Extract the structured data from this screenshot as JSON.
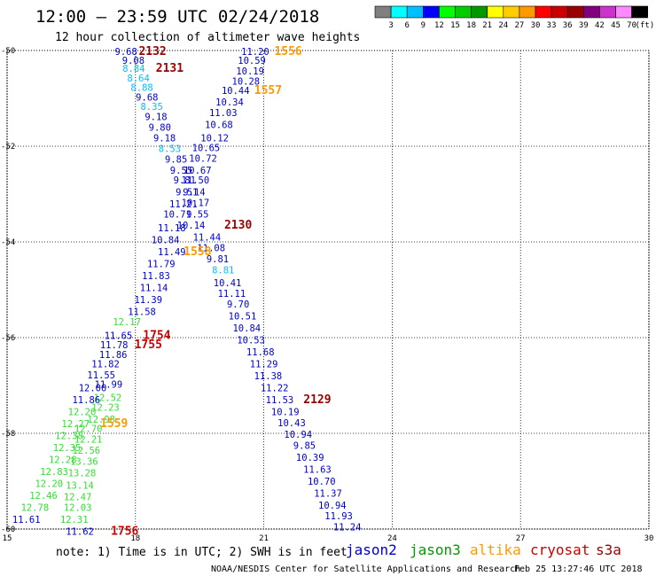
{
  "title": "12:00 – 23:59 UTC 02/24/2018",
  "subtitle": "12 hour collection of altimeter wave heights",
  "colorbar": {
    "labels": [
      "3",
      "6",
      "9",
      "12",
      "15",
      "18",
      "21",
      "24",
      "27",
      "30",
      "33",
      "36",
      "39",
      "42",
      "45",
      "70",
      "(ft)"
    ],
    "colors": [
      "#7f7f7f",
      "#00ffff",
      "#00bfff",
      "#0000ff",
      "#00ff00",
      "#00cc00",
      "#009900",
      "#ffff00",
      "#ffcc00",
      "#ff9900",
      "#ff0000",
      "#cc0000",
      "#990000",
      "#800080",
      "#cc33cc",
      "#ff88ff",
      "#000000"
    ]
  },
  "note": "note:  1) Time is in UTC;  2) SWH is in feet",
  "legend": [
    {
      "name": "jason2",
      "color": "#0000cc"
    },
    {
      "name": "jason3",
      "color": "#009900"
    },
    {
      "name": "altika",
      "color": "#ff9900"
    },
    {
      "name": "cryosat",
      "color": "#cc0000"
    },
    {
      "name": "s3a",
      "color": "#990000"
    }
  ],
  "credit": "NOAA/NESDIS Center for Satellite Applications and Research",
  "timestamp": "Feb 25 13:27:46 UTC 2018",
  "chart_data": {
    "type": "scatter",
    "title": "12:00 – 23:59 UTC 02/24/2018",
    "subtitle": "12 hour collection of altimeter wave heights",
    "xlim": [
      15,
      30
    ],
    "ylim": [
      -60,
      -50
    ],
    "x_ticks": [
      "15",
      "18",
      "21",
      "24",
      "27",
      "30"
    ],
    "y_ticks": [
      "-50",
      "-52",
      "-54",
      "-56",
      "-58",
      "-60"
    ],
    "grid": true,
    "color_scale_units": "ft",
    "points": [
      {
        "t": "9.68",
        "x": 17.78,
        "y": -50.02,
        "c": "#0000cc"
      },
      {
        "t": "2132",
        "x": 18.4,
        "y": -50.02,
        "c": "#990000",
        "time": true
      },
      {
        "t": "11.20",
        "x": 20.8,
        "y": -50.02,
        "c": "#0000cc"
      },
      {
        "t": "1556",
        "x": 21.57,
        "y": -50.02,
        "c": "#ff9900",
        "time": true
      },
      {
        "t": "9.08",
        "x": 17.95,
        "y": -50.2,
        "c": "#0000cc"
      },
      {
        "t": "10.59",
        "x": 20.72,
        "y": -50.2,
        "c": "#0000cc"
      },
      {
        "t": "8.84",
        "x": 17.96,
        "y": -50.37,
        "c": "#00bfff"
      },
      {
        "t": "2131",
        "x": 18.8,
        "y": -50.37,
        "c": "#990000",
        "time": true
      },
      {
        "t": "10.19",
        "x": 20.68,
        "y": -50.43,
        "c": "#0000cc"
      },
      {
        "t": "8.64",
        "x": 18.07,
        "y": -50.57,
        "c": "#00bfff"
      },
      {
        "t": "10.28",
        "x": 20.58,
        "y": -50.64,
        "c": "#0000cc"
      },
      {
        "t": "8.88",
        "x": 18.15,
        "y": -50.77,
        "c": "#00bfff"
      },
      {
        "t": "10.44",
        "x": 20.34,
        "y": -50.83,
        "c": "#0000cc"
      },
      {
        "t": "1557",
        "x": 21.1,
        "y": -50.83,
        "c": "#ff9900",
        "time": true
      },
      {
        "t": "9.68",
        "x": 18.27,
        "y": -50.97,
        "c": "#0000cc"
      },
      {
        "t": "10.34",
        "x": 20.2,
        "y": -51.07,
        "c": "#0000cc"
      },
      {
        "t": "8.35",
        "x": 18.38,
        "y": -51.17,
        "c": "#00bfff"
      },
      {
        "t": "11.03",
        "x": 20.05,
        "y": -51.3,
        "c": "#0000cc"
      },
      {
        "t": "9.18",
        "x": 18.48,
        "y": -51.38,
        "c": "#0000cc"
      },
      {
        "t": "10.68",
        "x": 19.95,
        "y": -51.55,
        "c": "#0000cc"
      },
      {
        "t": "9.80",
        "x": 18.57,
        "y": -51.6,
        "c": "#0000cc"
      },
      {
        "t": "9.18",
        "x": 18.68,
        "y": -51.82,
        "c": "#0000cc"
      },
      {
        "t": "10.12",
        "x": 19.85,
        "y": -51.82,
        "c": "#0000cc"
      },
      {
        "t": "10.65",
        "x": 19.65,
        "y": -52.03,
        "c": "#0000cc"
      },
      {
        "t": "8.53",
        "x": 18.8,
        "y": -52.05,
        "c": "#00bfff"
      },
      {
        "t": "10.72",
        "x": 19.58,
        "y": -52.25,
        "c": "#0000cc"
      },
      {
        "t": "9.85",
        "x": 18.95,
        "y": -52.27,
        "c": "#0000cc"
      },
      {
        "t": "10.67",
        "x": 19.45,
        "y": -52.5,
        "c": "#0000cc"
      },
      {
        "t": "9.55",
        "x": 19.07,
        "y": -52.5,
        "c": "#0000cc"
      },
      {
        "t": "11.50",
        "x": 19.4,
        "y": -52.7,
        "c": "#0000cc"
      },
      {
        "t": "9.81",
        "x": 19.15,
        "y": -52.7,
        "c": "#0000cc"
      },
      {
        "t": "9.14",
        "x": 19.37,
        "y": -52.95,
        "c": "#0000cc"
      },
      {
        "t": "9.51",
        "x": 19.2,
        "y": -52.95,
        "c": "#0000cc"
      },
      {
        "t": "10.17",
        "x": 19.4,
        "y": -53.18,
        "c": "#0000cc"
      },
      {
        "t": "11.21",
        "x": 19.12,
        "y": -53.2,
        "c": "#0000cc"
      },
      {
        "t": "9.55",
        "x": 19.45,
        "y": -53.42,
        "c": "#0000cc"
      },
      {
        "t": "10.71",
        "x": 18.98,
        "y": -53.42,
        "c": "#0000cc"
      },
      {
        "t": "10.14",
        "x": 19.3,
        "y": -53.65,
        "c": "#0000cc"
      },
      {
        "t": "2130",
        "x": 20.4,
        "y": -53.65,
        "c": "#990000",
        "time": true
      },
      {
        "t": "11.18",
        "x": 18.85,
        "y": -53.7,
        "c": "#0000cc"
      },
      {
        "t": "11.44",
        "x": 19.67,
        "y": -53.9,
        "c": "#0000cc"
      },
      {
        "t": "10.84",
        "x": 18.7,
        "y": -53.95,
        "c": "#0000cc"
      },
      {
        "t": "11.08",
        "x": 19.77,
        "y": -54.12,
        "c": "#0000cc"
      },
      {
        "t": "1558",
        "x": 19.45,
        "y": -54.2,
        "c": "#ff9900",
        "time": true
      },
      {
        "t": "11.49",
        "x": 18.85,
        "y": -54.2,
        "c": "#0000cc"
      },
      {
        "t": "9.81",
        "x": 19.92,
        "y": -54.35,
        "c": "#0000cc"
      },
      {
        "t": "11.79",
        "x": 18.6,
        "y": -54.45,
        "c": "#0000cc"
      },
      {
        "t": "8.81",
        "x": 20.05,
        "y": -54.58,
        "c": "#00bfff"
      },
      {
        "t": "11.83",
        "x": 18.48,
        "y": -54.7,
        "c": "#0000cc"
      },
      {
        "t": "10.41",
        "x": 20.15,
        "y": -54.85,
        "c": "#0000cc"
      },
      {
        "t": "11.14",
        "x": 18.43,
        "y": -54.95,
        "c": "#0000cc"
      },
      {
        "t": "11.11",
        "x": 20.25,
        "y": -55.07,
        "c": "#0000cc"
      },
      {
        "t": "11.39",
        "x": 18.3,
        "y": -55.2,
        "c": "#0000cc"
      },
      {
        "t": "9.70",
        "x": 20.4,
        "y": -55.3,
        "c": "#0000cc"
      },
      {
        "t": "11.58",
        "x": 18.15,
        "y": -55.45,
        "c": "#0000cc"
      },
      {
        "t": "10.51",
        "x": 20.5,
        "y": -55.55,
        "c": "#0000cc"
      },
      {
        "t": "12.17",
        "x": 17.8,
        "y": -55.67,
        "c": "#33dd33"
      },
      {
        "t": "10.84",
        "x": 20.6,
        "y": -55.8,
        "c": "#0000cc"
      },
      {
        "t": "11.65",
        "x": 17.6,
        "y": -55.95,
        "c": "#0000cc"
      },
      {
        "t": "1754",
        "x": 18.5,
        "y": -55.95,
        "c": "#cc0000",
        "time": true
      },
      {
        "t": "10.53",
        "x": 20.7,
        "y": -56.05,
        "c": "#0000cc"
      },
      {
        "t": "11.78",
        "x": 17.5,
        "y": -56.15,
        "c": "#0000cc"
      },
      {
        "t": "1755",
        "x": 18.3,
        "y": -56.15,
        "c": "#cc0000",
        "time": true
      },
      {
        "t": "11.68",
        "x": 20.92,
        "y": -56.3,
        "c": "#0000cc"
      },
      {
        "t": "11.86",
        "x": 17.48,
        "y": -56.35,
        "c": "#0000cc"
      },
      {
        "t": "11.29",
        "x": 21.0,
        "y": -56.55,
        "c": "#0000cc"
      },
      {
        "t": "11.82",
        "x": 17.3,
        "y": -56.55,
        "c": "#0000cc"
      },
      {
        "t": "11.55",
        "x": 17.2,
        "y": -56.78,
        "c": "#0000cc"
      },
      {
        "t": "11.38",
        "x": 21.1,
        "y": -56.8,
        "c": "#0000cc"
      },
      {
        "t": "11.99",
        "x": 17.37,
        "y": -56.97,
        "c": "#0000cc"
      },
      {
        "t": "11.22",
        "x": 21.25,
        "y": -57.05,
        "c": "#0000cc"
      },
      {
        "t": "12.00",
        "x": 17.0,
        "y": -57.05,
        "c": "#0000cc"
      },
      {
        "t": "12.52",
        "x": 17.35,
        "y": -57.25,
        "c": "#33dd33"
      },
      {
        "t": "11.53",
        "x": 21.37,
        "y": -57.3,
        "c": "#0000cc"
      },
      {
        "t": "2129",
        "x": 22.25,
        "y": -57.3,
        "c": "#990000",
        "time": true
      },
      {
        "t": "11.86",
        "x": 16.85,
        "y": -57.3,
        "c": "#0000cc"
      },
      {
        "t": "12.23",
        "x": 17.3,
        "y": -57.45,
        "c": "#33dd33"
      },
      {
        "t": "10.19",
        "x": 21.5,
        "y": -57.55,
        "c": "#0000cc"
      },
      {
        "t": "12.20",
        "x": 16.75,
        "y": -57.55,
        "c": "#33dd33"
      },
      {
        "t": "12.98",
        "x": 17.2,
        "y": -57.7,
        "c": "#33dd33"
      },
      {
        "t": "10.43",
        "x": 21.65,
        "y": -57.78,
        "c": "#0000cc"
      },
      {
        "t": "12.27",
        "x": 16.6,
        "y": -57.8,
        "c": "#33dd33"
      },
      {
        "t": "1559",
        "x": 17.5,
        "y": -57.8,
        "c": "#ff9900",
        "time": true
      },
      {
        "t": "12.70",
        "x": 16.9,
        "y": -57.9,
        "c": "#33dd33"
      },
      {
        "t": "10.94",
        "x": 21.8,
        "y": -58.02,
        "c": "#0000cc"
      },
      {
        "t": "12.38",
        "x": 16.45,
        "y": -58.05,
        "c": "#33dd33"
      },
      {
        "t": "12.21",
        "x": 16.9,
        "y": -58.12,
        "c": "#33dd33"
      },
      {
        "t": "9.85",
        "x": 21.95,
        "y": -58.25,
        "c": "#0000cc"
      },
      {
        "t": "12.35",
        "x": 16.4,
        "y": -58.3,
        "c": "#33dd33"
      },
      {
        "t": "12.56",
        "x": 16.85,
        "y": -58.35,
        "c": "#33dd33"
      },
      {
        "t": "10.39",
        "x": 22.08,
        "y": -58.5,
        "c": "#0000cc"
      },
      {
        "t": "12.28",
        "x": 16.3,
        "y": -58.55,
        "c": "#33dd33"
      },
      {
        "t": "13.36",
        "x": 16.8,
        "y": -58.58,
        "c": "#33dd33"
      },
      {
        "t": "11.63",
        "x": 22.25,
        "y": -58.75,
        "c": "#0000cc"
      },
      {
        "t": "12.83",
        "x": 16.1,
        "y": -58.8,
        "c": "#33dd33"
      },
      {
        "t": "13.28",
        "x": 16.75,
        "y": -58.82,
        "c": "#33dd33"
      },
      {
        "t": "10.70",
        "x": 22.35,
        "y": -59.0,
        "c": "#0000cc"
      },
      {
        "t": "12.20",
        "x": 15.98,
        "y": -59.05,
        "c": "#33dd33"
      },
      {
        "t": "13.14",
        "x": 16.7,
        "y": -59.08,
        "c": "#33dd33"
      },
      {
        "t": "11.37",
        "x": 22.5,
        "y": -59.25,
        "c": "#0000cc"
      },
      {
        "t": "12.46",
        "x": 15.85,
        "y": -59.3,
        "c": "#33dd33"
      },
      {
        "t": "12.47",
        "x": 16.65,
        "y": -59.32,
        "c": "#33dd33"
      },
      {
        "t": "10.94",
        "x": 22.6,
        "y": -59.5,
        "c": "#0000cc"
      },
      {
        "t": "12.78",
        "x": 15.65,
        "y": -59.55,
        "c": "#33dd33"
      },
      {
        "t": "12.03",
        "x": 16.65,
        "y": -59.55,
        "c": "#33dd33"
      },
      {
        "t": "11.93",
        "x": 22.75,
        "y": -59.72,
        "c": "#0000cc"
      },
      {
        "t": "11.61",
        "x": 15.45,
        "y": -59.8,
        "c": "#0000cc"
      },
      {
        "t": "12.31",
        "x": 16.57,
        "y": -59.8,
        "c": "#33dd33"
      },
      {
        "t": "11.24",
        "x": 22.95,
        "y": -59.95,
        "c": "#0000cc"
      },
      {
        "t": "11.62",
        "x": 16.7,
        "y": -60.05,
        "c": "#0000cc"
      },
      {
        "t": "1756",
        "x": 17.75,
        "y": -60.05,
        "c": "#cc0000",
        "time": true
      }
    ]
  }
}
